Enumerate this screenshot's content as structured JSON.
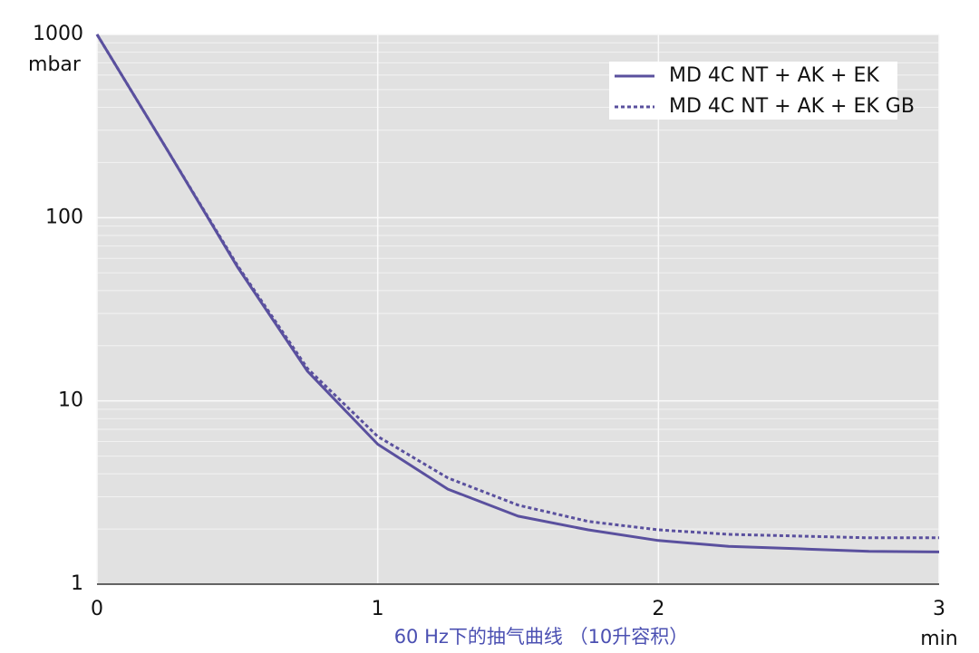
{
  "chart_data": {
    "type": "line",
    "title": "60 Hz下的抽气曲线 （10升容积）",
    "x_label": "min",
    "y_label": "mbar",
    "x": [
      0,
      0.25,
      0.5,
      0.75,
      1,
      1.25,
      1.5,
      1.75,
      2,
      2.25,
      2.5,
      2.75,
      3
    ],
    "series": [
      {
        "name": "MD 4C NT + AK + EK",
        "color": "#5a509e",
        "dash": false,
        "values": [
          1000,
          235,
          54,
          14.5,
          5.8,
          3.3,
          2.35,
          1.98,
          1.73,
          1.61,
          1.56,
          1.51,
          1.5
        ]
      },
      {
        "name": "MD 4C NT + AK + EK GB",
        "color": "#5a509e",
        "dash": true,
        "values": [
          1000,
          235,
          55,
          15,
          6.4,
          3.8,
          2.7,
          2.2,
          1.98,
          1.87,
          1.83,
          1.79,
          1.79
        ]
      }
    ],
    "xlim": [
      0,
      3
    ],
    "xticks": [
      0,
      1,
      2,
      3
    ],
    "ylim": [
      1,
      1000
    ],
    "yticks": [
      1,
      10,
      100,
      1000
    ],
    "log_y": true,
    "grid": true,
    "legend": "upper right"
  }
}
